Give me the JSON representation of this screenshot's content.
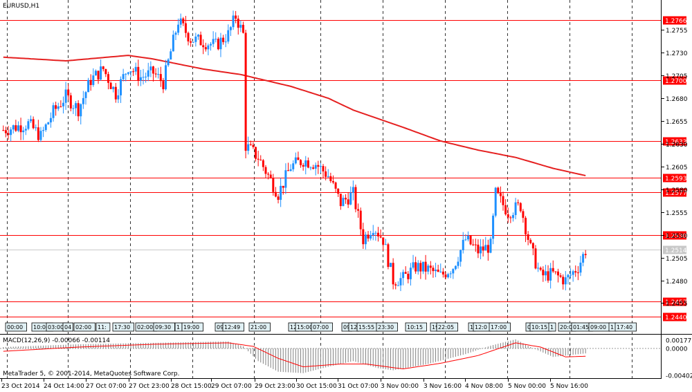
{
  "symbol_title": "EURUSD,H1",
  "macd_title": "MACD(12,26,9) -0.00066 -0.00114",
  "copyright": "MetaTrader 5, © 2001-2014, MetaQuotes Software Corp.",
  "colors": {
    "up": "#1e90ff",
    "down": "#ff0000",
    "ma": "#e52020",
    "level": "#ff0000",
    "grid": "#000000",
    "histogram": "#808080",
    "signal": "#ff0000",
    "current": "#c8c8c8",
    "time_box": "#e0f0f4"
  },
  "chart_data": {
    "type": "candlestick",
    "title": "EURUSD,H1",
    "ylim": [
      1.2425,
      1.2784
    ],
    "price_ticks": [
      "1.2755",
      "1.2730",
      "1.2705",
      "1.2680",
      "1.2655",
      "1.2630",
      "1.2605",
      "1.2580",
      "1.2555",
      "1.2530",
      "1.2505",
      "1.2480",
      "1.2455"
    ],
    "x_tick_labels": [
      "23 Oct 2014",
      "24 Oct 14:00",
      "27 Oct 07:00",
      "27 Oct 23:00",
      "28 Oct 15:00",
      "29 Oct 07:00",
      "29 Oct 23:00",
      "30 Oct 15:00",
      "31 Oct 07:00",
      "3 Nov 00:00",
      "3 Nov 16:00",
      "4 Nov 08:00",
      "5 Nov 00:00",
      "5 Nov 16:00"
    ],
    "horizontal_levels": [
      {
        "label": "1.2766",
        "value": 1.2766
      },
      {
        "label": "1.2700",
        "value": 1.27
      },
      {
        "label": "1.2633",
        "value": 1.2633
      },
      {
        "label": "1.2593",
        "value": 1.2593
      },
      {
        "label": "1.2577",
        "value": 1.2577
      },
      {
        "label": "1.2530",
        "value": 1.253
      },
      {
        "label": "1.2457",
        "value": 1.2457
      },
      {
        "label": "1.2440",
        "value": 1.244
      }
    ],
    "current_price": {
      "label": "1.2514",
      "value": 1.2514
    },
    "close_path": [
      [
        0,
        1.2645
      ],
      [
        10,
        1.2652
      ],
      [
        15,
        1.2638
      ],
      [
        20,
        1.2665
      ],
      [
        25,
        1.2682
      ],
      [
        30,
        1.2668
      ],
      [
        35,
        1.27
      ],
      [
        40,
        1.2712
      ],
      [
        45,
        1.2685
      ],
      [
        50,
        1.2715
      ],
      [
        55,
        1.2703
      ],
      [
        60,
        1.2708
      ],
      [
        64,
        1.2697
      ],
      [
        70,
        1.2765
      ],
      [
        75,
        1.2745
      ],
      [
        80,
        1.2742
      ],
      [
        85,
        1.2738
      ],
      [
        90,
        1.275
      ],
      [
        93,
        1.277
      ],
      [
        96,
        1.275
      ],
      [
        97,
        1.2628
      ],
      [
        102,
        1.2615
      ],
      [
        110,
        1.2575
      ],
      [
        115,
        1.2605
      ],
      [
        120,
        1.2612
      ],
      [
        125,
        1.2608
      ],
      [
        130,
        1.2595
      ],
      [
        135,
        1.2565
      ],
      [
        140,
        1.2575
      ],
      [
        144,
        1.2525
      ],
      [
        148,
        1.254
      ],
      [
        152,
        1.2525
      ],
      [
        156,
        1.248
      ],
      [
        160,
        1.2482
      ],
      [
        165,
        1.2495
      ],
      [
        170,
        1.2492
      ],
      [
        175,
        1.2485
      ],
      [
        180,
        1.2495
      ],
      [
        185,
        1.2525
      ],
      [
        190,
        1.2512
      ],
      [
        195,
        1.2518
      ],
      [
        197,
        1.2575
      ],
      [
        202,
        1.2555
      ],
      [
        207,
        1.2562
      ],
      [
        211,
        1.2515
      ],
      [
        215,
        1.2485
      ],
      [
        220,
        1.2487
      ],
      [
        225,
        1.248
      ],
      [
        230,
        1.2495
      ],
      [
        233,
        1.2513
      ]
    ],
    "moving_average": [
      [
        0,
        1.2725
      ],
      [
        25,
        1.2721
      ],
      [
        50,
        1.2727
      ],
      [
        60,
        1.2723
      ],
      [
        80,
        1.2712
      ],
      [
        95,
        1.2706
      ],
      [
        115,
        1.2693
      ],
      [
        130,
        1.268
      ],
      [
        140,
        1.2667
      ],
      [
        160,
        1.2648
      ],
      [
        175,
        1.2633
      ],
      [
        190,
        1.2623
      ],
      [
        205,
        1.2615
      ],
      [
        220,
        1.2603
      ],
      [
        233,
        1.2595
      ]
    ],
    "time_boxes": [
      "00:00",
      "10:00",
      "03:00",
      "04",
      "02:00",
      "11:",
      "17:30",
      "02:00",
      "09:30",
      "1",
      "19:00",
      "09",
      "12:49",
      "21:00",
      "12",
      "15:00",
      "07:00",
      "09",
      "12",
      "15:55",
      "23:30",
      "10:15",
      "19",
      "22:05",
      "1",
      "12:0",
      "17:00",
      "0",
      "10:15",
      "1",
      "20:0",
      "01:45",
      "09:00",
      "1",
      "17:40"
    ],
    "macd": {
      "main": -0.00066,
      "signal": -0.00114,
      "ylim": [
        -0.00402,
        0.00177
      ],
      "ticks": [
        "0.00177",
        "0.0000",
        "-0.00402"
      ],
      "histogram": [
        [
          0,
          0.0002
        ],
        [
          30,
          0.0006
        ],
        [
          60,
          0.0008
        ],
        [
          75,
          0.0009
        ],
        [
          90,
          0.001
        ],
        [
          96,
          0.0003
        ],
        [
          102,
          -0.0018
        ],
        [
          110,
          -0.0033
        ],
        [
          120,
          -0.0035
        ],
        [
          130,
          -0.0026
        ],
        [
          140,
          -0.0018
        ],
        [
          150,
          -0.0028
        ],
        [
          156,
          -0.0031
        ],
        [
          170,
          -0.0022
        ],
        [
          185,
          -0.0008
        ],
        [
          195,
          0.0004
        ],
        [
          205,
          0.0013
        ],
        [
          211,
          0.0002
        ],
        [
          220,
          -0.0012
        ],
        [
          233,
          -0.0007
        ]
      ],
      "signal_line": [
        [
          0,
          -0.0004
        ],
        [
          30,
          0.0002
        ],
        [
          60,
          0.0006
        ],
        [
          90,
          0.0008
        ],
        [
          100,
          0.0003
        ],
        [
          110,
          -0.0014
        ],
        [
          120,
          -0.0026
        ],
        [
          135,
          -0.0022
        ],
        [
          145,
          -0.0022
        ],
        [
          160,
          -0.0029
        ],
        [
          175,
          -0.0021
        ],
        [
          190,
          -0.001
        ],
        [
          205,
          0.0008
        ],
        [
          215,
          0.0002
        ],
        [
          225,
          -0.0012
        ],
        [
          233,
          -0.0011
        ]
      ]
    }
  }
}
